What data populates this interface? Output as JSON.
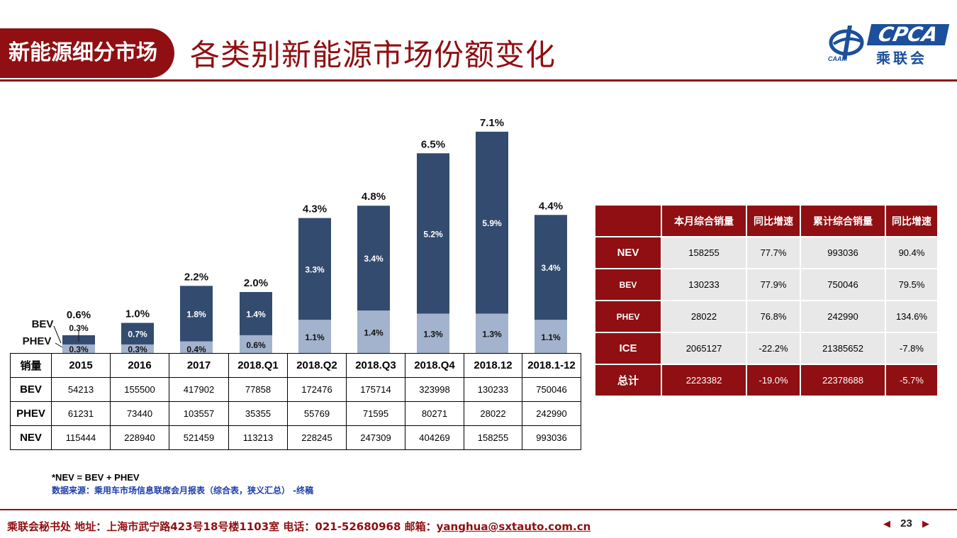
{
  "header": {
    "section_tag": "新能源细分市场",
    "title": "各类别新能源市场份额变化"
  },
  "logo": {
    "brand": "CPCA",
    "brand_cn": "乘联会",
    "caam": "CAAM"
  },
  "colors": {
    "brand_red": "#8f0f12",
    "bev": "#334b6e",
    "phev": "#a3b3cd"
  },
  "chart_data": {
    "type": "bar",
    "stacked": true,
    "categories": [
      "2015",
      "2016",
      "2017",
      "2018.Q1",
      "2018.Q2",
      "2018.Q3",
      "2018.Q4",
      "2018.12",
      "2018.1-12"
    ],
    "series": [
      {
        "name": "PHEV",
        "values": [
          0.3,
          0.3,
          0.4,
          0.6,
          1.1,
          1.4,
          1.3,
          1.3,
          1.1
        ],
        "labels": [
          "0.3%",
          "0.3%",
          "0.4%",
          "0.6%",
          "1.1%",
          "1.4%",
          "1.3%",
          "1.3%",
          "1.1%"
        ]
      },
      {
        "name": "BEV",
        "values": [
          0.3,
          0.7,
          1.8,
          1.4,
          3.3,
          3.4,
          5.2,
          5.9,
          3.4
        ],
        "labels": [
          "0.3%",
          "0.7%",
          "1.8%",
          "1.4%",
          "3.3%",
          "3.4%",
          "5.2%",
          "5.9%",
          "3.4%"
        ]
      }
    ],
    "totals": [
      0.6,
      1.0,
      2.2,
      2.0,
      4.3,
      4.8,
      6.5,
      7.1,
      4.4
    ],
    "total_labels": [
      "0.6%",
      "1.0%",
      "2.2%",
      "2.0%",
      "4.3%",
      "4.8%",
      "6.5%",
      "7.1%",
      "4.4%"
    ],
    "ylim": [
      0,
      8
    ],
    "legend_labels": [
      "BEV",
      "PHEV"
    ]
  },
  "sales_table": {
    "header_label": "销量",
    "columns": [
      "2015",
      "2016",
      "2017",
      "2018.Q1",
      "2018.Q2",
      "2018.Q3",
      "2018.Q4",
      "2018.12",
      "2018.1-12"
    ],
    "rows": [
      {
        "label": "BEV",
        "values": [
          "54213",
          "155500",
          "417902",
          "77858",
          "172476",
          "175714",
          "323998",
          "130233",
          "750046"
        ]
      },
      {
        "label": "PHEV",
        "values": [
          "61231",
          "73440",
          "103557",
          "35355",
          "55769",
          "71595",
          "80271",
          "28022",
          "242990"
        ]
      },
      {
        "label": "NEV",
        "values": [
          "115444",
          "228940",
          "521459",
          "113213",
          "228245",
          "247309",
          "404269",
          "158255",
          "993036"
        ]
      }
    ]
  },
  "summary_table": {
    "headers": [
      "本月综合销量",
      "同比增速",
      "累计综合销量",
      "同比增速"
    ],
    "rows": [
      {
        "label": "NEV",
        "values": [
          "158255",
          "77.7%",
          "993036",
          "90.4%"
        ]
      },
      {
        "label": "BEV",
        "values": [
          "130233",
          "77.9%",
          "750046",
          "79.5%"
        ]
      },
      {
        "label": "PHEV",
        "values": [
          "28022",
          "76.8%",
          "242990",
          "134.6%"
        ]
      },
      {
        "label": "ICE",
        "values": [
          "2065127",
          "-22.2%",
          "21385652",
          "-7.8%"
        ]
      },
      {
        "label": "总计",
        "values": [
          "2223382",
          "-19.0%",
          "22378688",
          "-5.7%"
        ]
      }
    ]
  },
  "notes": {
    "formula": "*NEV = BEV + PHEV",
    "source": "数据来源：乘用车市场信息联席会月报表（综合表，狭义汇总） -终稿"
  },
  "footer": {
    "text": "乘联会秘书处   地址：上海市武宁路423号18号楼1103室  电话：021-52680968   邮箱：",
    "email": "yanghua@sxtauto.com.cn",
    "page": "23",
    "prev": "◀",
    "next": "▶"
  }
}
